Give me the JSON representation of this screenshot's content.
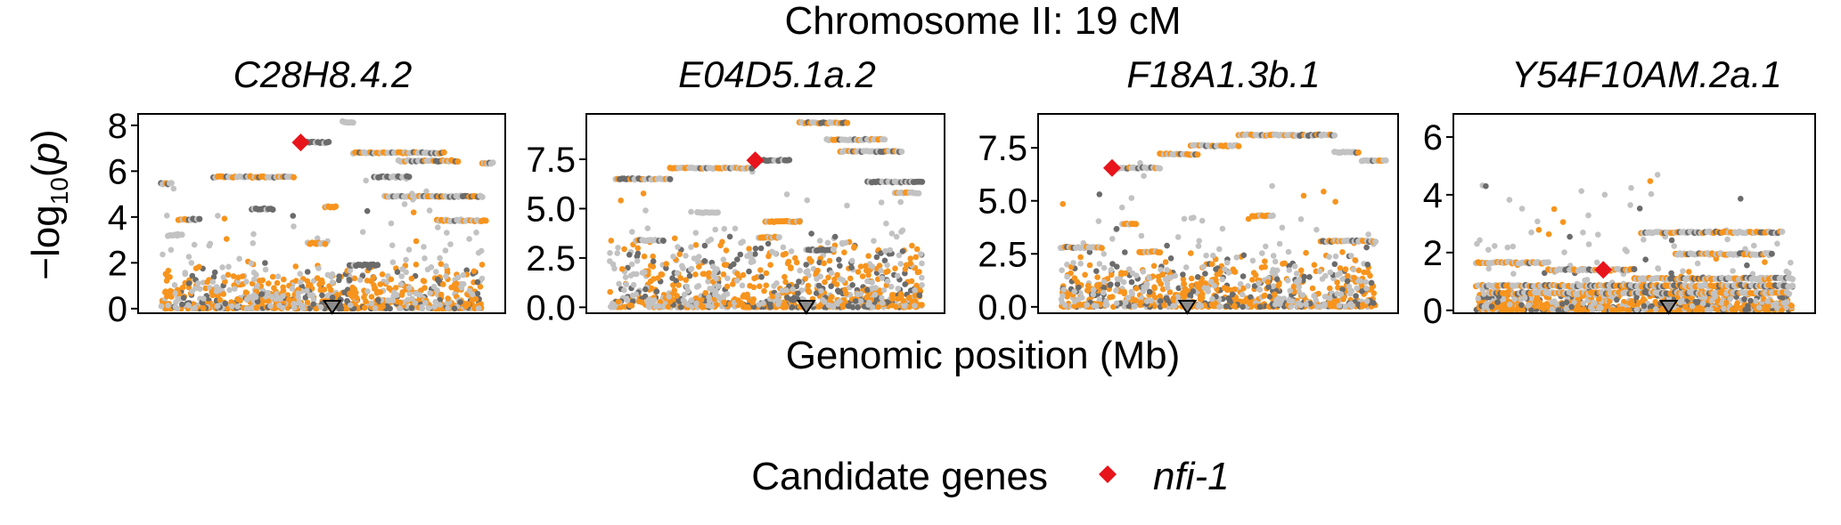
{
  "figure": {
    "title": "Chromosome II: 19 cM",
    "xlabel": "Genomic position (Mb)",
    "ylabel_main": "−log",
    "ylabel_sub": "10",
    "ylabel_var": "p"
  },
  "legend": {
    "title": "Candidate genes",
    "entry": "nfi-1",
    "position": "bottom"
  },
  "colors": {
    "light": "#c2c2c2",
    "dark": "#6b6b6b",
    "orange": "#f7941d",
    "candidate": "#e8141b",
    "triangle_fill": "#8c8c8c"
  },
  "chart_data": [
    {
      "type": "scatter",
      "title": "C28H8.4.2",
      "x_range": [
        0,
        100
      ],
      "ylim": [
        -0.2,
        8.5
      ],
      "yticks": [
        0,
        2,
        4,
        6,
        8
      ],
      "ytick_labels": [
        "0",
        "2",
        "4",
        "6",
        "8"
      ],
      "candidate": {
        "x": 44,
        "y": 7.25
      },
      "gene_position": 53,
      "baseline": {
        "max": 1.2
      },
      "bands": [
        {
          "y": 5.45,
          "x0": 4,
          "x1": 7,
          "color": "mix"
        },
        {
          "y": 3.9,
          "x0": 9,
          "x1": 15,
          "color": "mix"
        },
        {
          "y": 3.2,
          "x0": 6,
          "x1": 10,
          "color": "mix"
        },
        {
          "y": 5.75,
          "x0": 19,
          "x1": 42,
          "color": "mix"
        },
        {
          "y": 4.35,
          "x0": 30,
          "x1": 36,
          "color": "dark"
        },
        {
          "y": 7.25,
          "x0": 44,
          "x1": 52,
          "color": "dark"
        },
        {
          "y": 8.15,
          "x0": 56,
          "x1": 59,
          "color": "light"
        },
        {
          "y": 6.8,
          "x0": 59,
          "x1": 85,
          "color": "mix"
        },
        {
          "y": 6.45,
          "x0": 72,
          "x1": 89,
          "color": "mix"
        },
        {
          "y": 5.75,
          "x0": 65,
          "x1": 75,
          "color": "dark"
        },
        {
          "y": 4.9,
          "x0": 68,
          "x1": 96,
          "color": "mix"
        },
        {
          "y": 3.85,
          "x0": 83,
          "x1": 97,
          "color": "mix"
        },
        {
          "y": 6.35,
          "x0": 96,
          "x1": 99,
          "color": "mix"
        },
        {
          "y": 2.85,
          "x0": 46,
          "x1": 51,
          "color": "orange"
        },
        {
          "y": 4.45,
          "x0": 51,
          "x1": 54,
          "color": "orange"
        },
        {
          "y": 1.9,
          "x0": 58,
          "x1": 66,
          "color": "dark"
        }
      ]
    },
    {
      "type": "scatter",
      "title": "E04D5.1a.2",
      "x_range": [
        0,
        100
      ],
      "ylim": [
        -0.3,
        9.8
      ],
      "yticks": [
        0,
        2.5,
        5,
        7.5
      ],
      "ytick_labels": [
        "0.0",
        "2.5",
        "5.0",
        "7.5"
      ],
      "candidate": {
        "x": 47,
        "y": 7.45
      },
      "gene_position": 62,
      "baseline": {
        "max": 2.2
      },
      "bands": [
        {
          "y": 6.5,
          "x0": 6,
          "x1": 22,
          "color": "mix"
        },
        {
          "y": 7.05,
          "x0": 22,
          "x1": 46,
          "color": "mix"
        },
        {
          "y": 7.45,
          "x0": 47,
          "x1": 57,
          "color": "dark"
        },
        {
          "y": 9.35,
          "x0": 60,
          "x1": 74,
          "color": "mix"
        },
        {
          "y": 8.5,
          "x0": 68,
          "x1": 85,
          "color": "mix"
        },
        {
          "y": 7.9,
          "x0": 72,
          "x1": 90,
          "color": "mix"
        },
        {
          "y": 6.35,
          "x0": 80,
          "x1": 96,
          "color": "dark"
        },
        {
          "y": 4.35,
          "x0": 50,
          "x1": 60,
          "color": "orange"
        },
        {
          "y": 3.55,
          "x0": 48,
          "x1": 54,
          "color": "orange"
        },
        {
          "y": 2.9,
          "x0": 62,
          "x1": 70,
          "color": "dark"
        },
        {
          "y": 3.4,
          "x0": 12,
          "x1": 20,
          "color": "mix"
        },
        {
          "y": 4.8,
          "x0": 30,
          "x1": 36,
          "color": "light"
        },
        {
          "y": 5.8,
          "x0": 88,
          "x1": 95,
          "color": "mix"
        }
      ]
    },
    {
      "type": "scatter",
      "title": "F18A1.3b.1",
      "x_range": [
        0,
        100
      ],
      "ylim": [
        -0.3,
        9.1
      ],
      "yticks": [
        0,
        2.5,
        5,
        7.5
      ],
      "ytick_labels": [
        "0.0",
        "2.5",
        "5.0",
        "7.5"
      ],
      "candidate": {
        "x": 19,
        "y": 6.55
      },
      "gene_position": 41,
      "baseline": {
        "max": 1.5
      },
      "bands": [
        {
          "y": 6.55,
          "x0": 19,
          "x1": 33,
          "color": "mix"
        },
        {
          "y": 7.2,
          "x0": 33,
          "x1": 44,
          "color": "mix"
        },
        {
          "y": 7.6,
          "x0": 42,
          "x1": 56,
          "color": "mix"
        },
        {
          "y": 8.1,
          "x0": 56,
          "x1": 72,
          "color": "mix"
        },
        {
          "y": 8.1,
          "x0": 72,
          "x1": 84,
          "color": "mix"
        },
        {
          "y": 7.3,
          "x0": 84,
          "x1": 91,
          "color": "mix"
        },
        {
          "y": 3.1,
          "x0": 80,
          "x1": 96,
          "color": "mix"
        },
        {
          "y": 2.8,
          "x0": 4,
          "x1": 16,
          "color": "mix"
        },
        {
          "y": 3.9,
          "x0": 22,
          "x1": 26,
          "color": "orange"
        },
        {
          "y": 2.6,
          "x0": 27,
          "x1": 33,
          "color": "orange"
        },
        {
          "y": 6.9,
          "x0": 92,
          "x1": 99,
          "color": "mix"
        },
        {
          "y": 4.3,
          "x0": 60,
          "x1": 66,
          "color": "orange"
        }
      ]
    },
    {
      "type": "scatter",
      "title": "Y54F10AM.2a.1",
      "x_range": [
        0,
        100
      ],
      "ylim": [
        -0.1,
        6.8
      ],
      "yticks": [
        0,
        2,
        4,
        6
      ],
      "ytick_labels": [
        "0",
        "2",
        "4",
        "6"
      ],
      "candidate": {
        "x": 41,
        "y": 1.4
      },
      "gene_position": 60,
      "baseline": {
        "max": 0.5
      },
      "bands": [
        {
          "y": 1.65,
          "x0": 4,
          "x1": 25,
          "color": "mix"
        },
        {
          "y": 1.4,
          "x0": 25,
          "x1": 50,
          "color": "mix"
        },
        {
          "y": 0.85,
          "x0": 4,
          "x1": 96,
          "color": "mix"
        },
        {
          "y": 1.1,
          "x0": 50,
          "x1": 96,
          "color": "mix"
        },
        {
          "y": 2.7,
          "x0": 52,
          "x1": 93,
          "color": "mix"
        },
        {
          "y": 1.95,
          "x0": 62,
          "x1": 90,
          "color": "mix"
        },
        {
          "y": 0.6,
          "x0": 8,
          "x1": 95,
          "color": "mix"
        }
      ]
    }
  ]
}
